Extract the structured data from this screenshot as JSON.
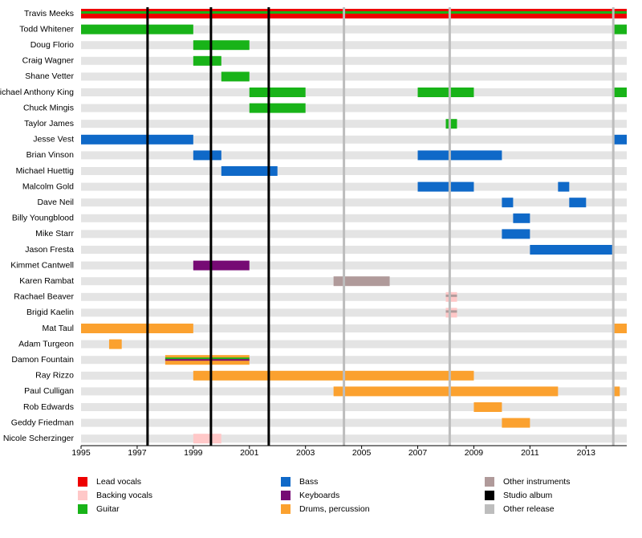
{
  "chart_data": {
    "type": "timeline",
    "xlim": [
      1995,
      2014.45
    ],
    "xticks": [
      1995,
      1997,
      1999,
      2001,
      2003,
      2005,
      2007,
      2009,
      2011,
      2013
    ],
    "roles": [
      {
        "name": "Lead vocals",
        "color": "#ee0000"
      },
      {
        "name": "Backing vocals",
        "color": "#ffc8c8"
      },
      {
        "name": "Guitar",
        "color": "#18b318"
      },
      {
        "name": "Bass",
        "color": "#0f69c8"
      },
      {
        "name": "Keyboards",
        "color": "#760a74"
      },
      {
        "name": "Drums, percussion",
        "color": "#fba12f"
      },
      {
        "name": "Other instruments",
        "color": "#b09a9a"
      }
    ],
    "events": [
      {
        "name": "Studio album",
        "color": "#000000",
        "x": [
          1997.37,
          1999.63,
          2001.69
        ]
      },
      {
        "name": "Other release",
        "color": "#bdbdbd",
        "x": [
          2004.37,
          2008.14,
          2013.97
        ]
      }
    ],
    "members": [
      {
        "name": "Travis Meeks",
        "periods": [
          {
            "start": 1995,
            "end": 2014.45,
            "roles": [
              0,
              2
            ]
          }
        ]
      },
      {
        "name": "Todd Whitener",
        "periods": [
          {
            "start": 1995,
            "end": 1999,
            "roles": [
              2
            ]
          },
          {
            "start": 2014,
            "end": 2014.45,
            "roles": [
              2
            ]
          }
        ]
      },
      {
        "name": "Doug Florio",
        "periods": [
          {
            "start": 1999,
            "end": 2001,
            "roles": [
              2
            ]
          }
        ]
      },
      {
        "name": "Craig Wagner",
        "periods": [
          {
            "start": 1999,
            "end": 2000,
            "roles": [
              2
            ]
          }
        ]
      },
      {
        "name": "Shane Vetter",
        "periods": [
          {
            "start": 2000,
            "end": 2001,
            "roles": [
              2
            ]
          }
        ]
      },
      {
        "name": "Michael Anthony King",
        "periods": [
          {
            "start": 2001,
            "end": 2003,
            "roles": [
              2
            ]
          },
          {
            "start": 2007,
            "end": 2009,
            "roles": [
              2
            ]
          },
          {
            "start": 2014,
            "end": 2014.45,
            "roles": [
              2
            ]
          }
        ]
      },
      {
        "name": "Chuck Mingis",
        "periods": [
          {
            "start": 2001,
            "end": 2003,
            "roles": [
              2
            ]
          }
        ]
      },
      {
        "name": "Taylor James",
        "periods": [
          {
            "start": 2008,
            "end": 2008.4,
            "roles": [
              2
            ]
          }
        ]
      },
      {
        "name": "Jesse Vest",
        "periods": [
          {
            "start": 1995,
            "end": 1999,
            "roles": [
              3
            ]
          },
          {
            "start": 2014,
            "end": 2014.45,
            "roles": [
              3
            ]
          }
        ]
      },
      {
        "name": "Brian Vinson",
        "periods": [
          {
            "start": 1999,
            "end": 2000,
            "roles": [
              3
            ]
          },
          {
            "start": 2007,
            "end": 2010,
            "roles": [
              3
            ]
          }
        ]
      },
      {
        "name": "Michael Huettig",
        "periods": [
          {
            "start": 2000,
            "end": 2002,
            "roles": [
              3
            ]
          }
        ]
      },
      {
        "name": "Malcolm Gold",
        "periods": [
          {
            "start": 2007,
            "end": 2009,
            "roles": [
              3
            ]
          },
          {
            "start": 2012,
            "end": 2012.4,
            "roles": [
              3
            ]
          }
        ]
      },
      {
        "name": "Dave Neil",
        "periods": [
          {
            "start": 2010,
            "end": 2010.4,
            "roles": [
              3
            ]
          },
          {
            "start": 2012.4,
            "end": 2013,
            "roles": [
              3
            ]
          }
        ]
      },
      {
        "name": "Billy Youngblood",
        "periods": [
          {
            "start": 2010.4,
            "end": 2011,
            "roles": [
              3
            ]
          }
        ]
      },
      {
        "name": "Mike Starr",
        "periods": [
          {
            "start": 2010,
            "end": 2011,
            "roles": [
              3
            ]
          }
        ]
      },
      {
        "name": "Jason Fresta",
        "periods": [
          {
            "start": 2011,
            "end": 2014,
            "roles": [
              3
            ]
          }
        ]
      },
      {
        "name": "Kimmet Cantwell",
        "periods": [
          {
            "start": 1999,
            "end": 2001,
            "roles": [
              4
            ]
          }
        ]
      },
      {
        "name": "Karen Rambat",
        "periods": [
          {
            "start": 2004,
            "end": 2006,
            "roles": [
              6
            ]
          }
        ]
      },
      {
        "name": "Rachael Beaver",
        "periods": [
          {
            "start": 2008,
            "end": 2008.4,
            "roles": [
              1,
              6
            ]
          }
        ]
      },
      {
        "name": "Brigid Kaelin",
        "periods": [
          {
            "start": 2008,
            "end": 2008.4,
            "roles": [
              1,
              6
            ]
          }
        ]
      },
      {
        "name": "Mat Taul",
        "periods": [
          {
            "start": 1995,
            "end": 1999,
            "roles": [
              5
            ]
          },
          {
            "start": 2014,
            "end": 2014.45,
            "roles": [
              5
            ]
          }
        ]
      },
      {
        "name": "Adam Turgeon",
        "periods": [
          {
            "start": 1996,
            "end": 1996.45,
            "roles": [
              5
            ]
          }
        ]
      },
      {
        "name": "Damon Fountain",
        "periods": [
          {
            "start": 1998,
            "end": 2001,
            "roles": [
              5,
              2,
              4
            ]
          }
        ]
      },
      {
        "name": "Ray Rizzo",
        "periods": [
          {
            "start": 1999,
            "end": 2009,
            "roles": [
              5
            ]
          }
        ]
      },
      {
        "name": "Paul Culligan",
        "periods": [
          {
            "start": 2004,
            "end": 2012,
            "roles": [
              5
            ]
          },
          {
            "start": 2014,
            "end": 2014.2,
            "roles": [
              5
            ]
          }
        ]
      },
      {
        "name": "Rob Edwards",
        "periods": [
          {
            "start": 2009,
            "end": 2010,
            "roles": [
              5
            ]
          }
        ]
      },
      {
        "name": "Geddy Friedman",
        "periods": [
          {
            "start": 2010,
            "end": 2011,
            "roles": [
              5
            ]
          }
        ]
      },
      {
        "name": "Nicole Scherzinger",
        "periods": [
          {
            "start": 1999,
            "end": 2000,
            "roles": [
              1
            ]
          }
        ]
      }
    ]
  }
}
